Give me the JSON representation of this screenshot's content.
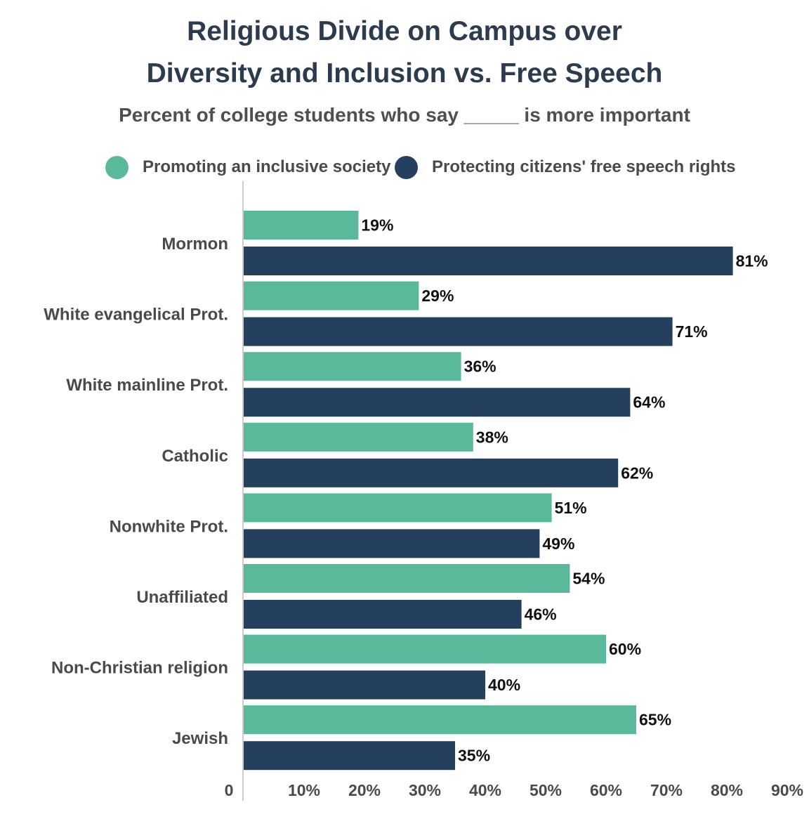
{
  "title_line1": "Religious Divide on Campus over",
  "title_line2": "Diversity and Inclusion vs. Free Speech",
  "subtitle": "Percent of college students who say _____ is more important",
  "colors": {
    "inclusive": "#5bb99b",
    "free_speech": "#253f5e",
    "title": "#2d3b4f",
    "axis": "#cccccc",
    "label": "#4a4a4a"
  },
  "chart_data": {
    "type": "bar",
    "orientation": "horizontal",
    "categories": [
      "Mormon",
      "White evangelical Prot.",
      "White mainline Prot.",
      "Catholic",
      "Nonwhite Prot.",
      "Unaffiliated",
      "Non-Christian religion",
      "Jewish"
    ],
    "series": [
      {
        "name": "Promoting an inclusive society",
        "color": "#5bb99b",
        "values": [
          19,
          29,
          36,
          38,
          51,
          54,
          60,
          65
        ]
      },
      {
        "name": "Protecting citizens' free speech rights",
        "color": "#253f5e",
        "values": [
          81,
          71,
          64,
          62,
          49,
          46,
          40,
          35
        ]
      }
    ],
    "value_suffix": "%",
    "xlim": [
      0,
      90
    ],
    "xticks": [
      "0",
      "10%",
      "20%",
      "30%",
      "40%",
      "50%",
      "60%",
      "70%",
      "80%",
      "90%"
    ],
    "legend_position": "top",
    "grid": false
  }
}
